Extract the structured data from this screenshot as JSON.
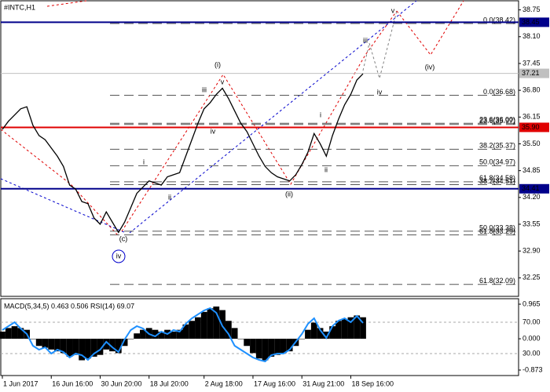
{
  "chart_data": [
    {
      "type": "line",
      "title": "#INTC,H1",
      "color": "#000000",
      "categories": [
        "1 Jun 2017",
        null,
        null,
        null,
        null,
        null,
        null,
        null,
        "16 Jun 16:00",
        null,
        null,
        null,
        null,
        null,
        null,
        null,
        "30 Jun 20:00",
        null,
        null,
        null,
        null,
        null,
        null,
        null,
        "18 Jul 20:00",
        null,
        null,
        null,
        null,
        null,
        null,
        null,
        null,
        "2 Aug 18:00",
        null,
        null,
        null,
        null,
        null,
        null,
        null,
        "17 Aug 16:00",
        null,
        null,
        null,
        null,
        null,
        null,
        null,
        "31 Aug 21:00",
        null,
        null,
        null,
        null,
        null,
        null,
        null,
        "18 Sep 16:00",
        null,
        null
      ],
      "values": [
        35.85,
        36.05,
        36.2,
        36.35,
        36.4,
        35.95,
        35.7,
        35.6,
        35.4,
        35.2,
        34.95,
        34.5,
        34.4,
        34.1,
        34.05,
        33.7,
        33.55,
        33.85,
        33.6,
        33.35,
        33.6,
        33.95,
        34.3,
        34.45,
        34.6,
        34.55,
        34.5,
        34.7,
        34.75,
        34.8,
        35.2,
        35.6,
        36.0,
        36.35,
        36.5,
        36.7,
        36.85,
        36.6,
        36.3,
        36.0,
        35.8,
        35.5,
        35.2,
        34.95,
        34.8,
        34.7,
        34.65,
        34.6,
        34.75,
        35.0,
        35.3,
        35.75,
        35.5,
        35.2,
        35.7,
        36.1,
        36.45,
        36.7,
        37.05,
        37.2
      ],
      "ylim": [
        31.8,
        38.99
      ],
      "yticks": [
        38.75,
        {
          "value": 38.1,
          "label": "38.10"
        },
        37.45,
        {
          "value": 36.8,
          "label": "36.80"
        },
        36.15,
        {
          "value": 35.5,
          "label": "35.50"
        },
        34.85,
        {
          "value": 34.2,
          "label": "34.20"
        },
        33.55,
        {
          "value": 32.9,
          "label": "32.90"
        },
        32.25
      ],
      "levels": [
        {
          "value": 38.45,
          "color": "#00008b"
        },
        {
          "value": 37.21,
          "color": "#c0c0c0"
        },
        {
          "value": 35.9,
          "label": "35.90",
          "color": "#e00000"
        },
        {
          "value": 34.41,
          "color": "#00008b"
        }
      ],
      "fib_levels": [
        {
          "value": 38.42,
          "label": "0.0(38.42)"
        },
        {
          "value": 36.68,
          "label": "0.0(36.68)"
        },
        {
          "value": 36.0,
          "label": "23.6(36.00)"
        },
        {
          "value": 35.97,
          "label": "23.6(35.97)"
        },
        {
          "value": 35.37,
          "label": "38.2(35.37)"
        },
        {
          "value": 34.97,
          "label": "50.0(34.97)"
        },
        {
          "value": 34.58,
          "label": "61.8(34.58)"
        },
        {
          "value": 34.51,
          "label": "38.2(34.51)"
        },
        {
          "value": 33.38,
          "label": "50.0(33.38)"
        },
        {
          "value": 33.29,
          "label": "61.8(33.29)"
        },
        {
          "value": 32.09,
          "label": "61.8(32.09)"
        }
      ],
      "annotations": [
        {
          "text": "(i)",
          "color": "#e00000"
        },
        {
          "text": "(ii)",
          "color": "#e00000"
        },
        {
          "text": "(c)",
          "color": "#e00000"
        },
        {
          "text": "iv",
          "color": "#0000cc"
        },
        {
          "text": "(iv)",
          "color": "#e00000"
        },
        {
          "text": "v",
          "color": "#808080"
        },
        {
          "text": "iii",
          "color": "#808080"
        },
        {
          "text": "iv",
          "color": "#808080"
        },
        {
          "text": "iii",
          "color": "#555555"
        },
        {
          "text": "v",
          "color": "#555555"
        },
        {
          "text": "iv",
          "color": "#555555"
        },
        {
          "text": "i",
          "color": "#555555"
        },
        {
          "text": "ii",
          "color": "#555555"
        },
        {
          "text": "i",
          "color": "#555555"
        },
        {
          "text": "ii",
          "color": "#555555"
        }
      ]
    },
    {
      "type": "macd",
      "title": "MACD(5,34,5) 0.463 0.506 RSI(14) 69.07",
      "series": [
        {
          "color": "#000000",
          "values": [
            0.2,
            0.3,
            0.35,
            0.3,
            0.25,
            0.0,
            -0.2,
            -0.25,
            -0.3,
            -0.35,
            -0.4,
            -0.5,
            -0.45,
            -0.6,
            -0.55,
            -0.5,
            -0.45,
            -0.3,
            -0.35,
            -0.4,
            -0.2,
            0.0,
            0.15,
            0.25,
            0.3,
            0.25,
            0.2,
            0.25,
            0.2,
            0.25,
            0.4,
            0.5,
            0.6,
            0.75,
            0.85,
            0.9,
            0.8,
            0.5,
            0.3,
            0.0,
            -0.2,
            -0.4,
            -0.55,
            -0.6,
            -0.5,
            -0.45,
            -0.4,
            -0.35,
            -0.2,
            0.0,
            0.25,
            0.45,
            0.3,
            0.2,
            0.35,
            0.5,
            0.55,
            0.6,
            0.65,
            0.6
          ]
        },
        {
          "color": "#1e90ff",
          "axis": "y2",
          "values": [
            60,
            65,
            70,
            62,
            55,
            40,
            35,
            38,
            30,
            35,
            32,
            25,
            30,
            28,
            22,
            30,
            35,
            45,
            38,
            32,
            48,
            60,
            65,
            62,
            55,
            52,
            58,
            55,
            60,
            58,
            68,
            75,
            80,
            85,
            88,
            82,
            65,
            55,
            40,
            35,
            30,
            25,
            22,
            20,
            28,
            30,
            30,
            35,
            45,
            55,
            68,
            75,
            60,
            50,
            65,
            72,
            75,
            70,
            78,
            69.07
          ]
        }
      ],
      "ylim": [
        -0.873,
        0.965
      ],
      "yticks": [
        0.965,
        {
          "value": 0,
          "label": "0.000"
        },
        -0.873
      ],
      "y2lim": [
        9,
        93
      ],
      "y2ticks": [
        {
          "value": 70,
          "label": "70.00"
        },
        {
          "value": 30,
          "label": "30.00"
        }
      ]
    }
  ]
}
